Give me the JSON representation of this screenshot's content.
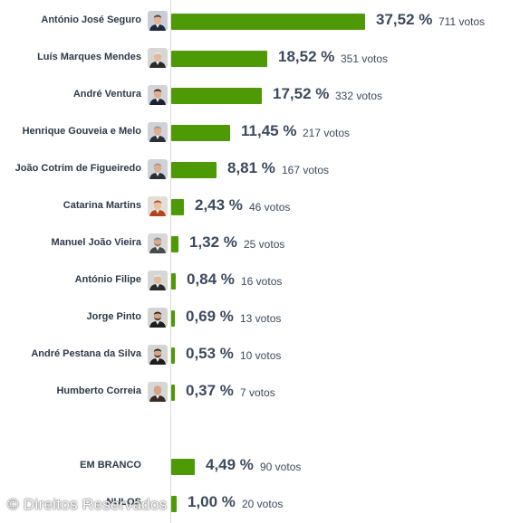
{
  "chart_data": {
    "type": "bar",
    "orientation": "horizontal",
    "unit": "%",
    "votes_suffix": "votos",
    "xlim": [
      0,
      37.52
    ],
    "rows": [
      {
        "name": "António José Seguro",
        "pct": "37,52 %",
        "value": 37.52,
        "votes": 711,
        "avatar": "man-dark-suit"
      },
      {
        "name": "Luís Marques Mendes",
        "pct": "18,52 %",
        "value": 18.52,
        "votes": 351,
        "avatar": "man-white-hair"
      },
      {
        "name": "André Ventura",
        "pct": "17,52 %",
        "value": 17.52,
        "votes": 332,
        "avatar": "man-dark-hair"
      },
      {
        "name": "Henrique Gouveia e Melo",
        "pct": "11,45 %",
        "value": 11.45,
        "votes": 217,
        "avatar": "man-grey-hair"
      },
      {
        "name": "João Cotrim de Figueiredo",
        "pct": "8,81 %",
        "value": 8.81,
        "votes": 167,
        "avatar": "man-grey-hair"
      },
      {
        "name": "Catarina Martins",
        "pct": "2,43 %",
        "value": 2.43,
        "votes": 46,
        "avatar": "woman-red-hair"
      },
      {
        "name": "Manuel João Vieira",
        "pct": "1,32 %",
        "value": 1.32,
        "votes": 25,
        "avatar": "man-beard-grey"
      },
      {
        "name": "António Filipe",
        "pct": "0,84 %",
        "value": 0.84,
        "votes": 16,
        "avatar": "man-white-hair"
      },
      {
        "name": "Jorge Pinto",
        "pct": "0,69 %",
        "value": 0.69,
        "votes": 13,
        "avatar": "man-beard-dark"
      },
      {
        "name": "André Pestana da Silva",
        "pct": "0,53 %",
        "value": 0.53,
        "votes": 10,
        "avatar": "man-beard-dark"
      },
      {
        "name": "Humberto Correia",
        "pct": "0,37 %",
        "value": 0.37,
        "votes": 7,
        "avatar": "man-bald"
      },
      {
        "name": "EM BRANCO",
        "pct": "4,49 %",
        "value": 4.49,
        "votes": 90,
        "avatar": ""
      },
      {
        "name": "NULOS",
        "pct": "1,00 %",
        "value": 1.0,
        "votes": 20,
        "avatar": ""
      }
    ]
  },
  "watermark": "© Direitos Reservados",
  "colors": {
    "bar": "#4e9a06",
    "text": "#3b4a5e",
    "name": "#2d3a4a"
  }
}
